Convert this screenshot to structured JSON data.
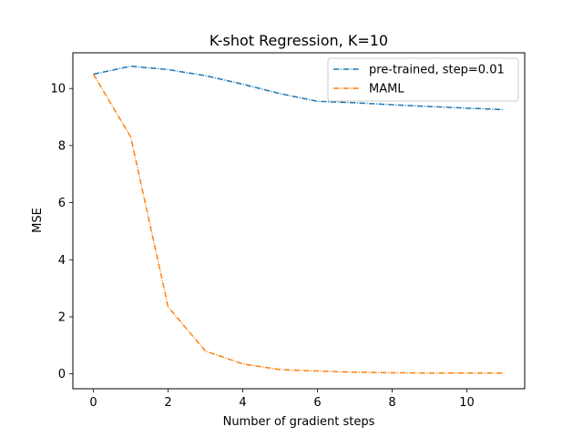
{
  "chart_data": {
    "type": "line",
    "title": "K-shot Regression, K=10",
    "xlabel": "Number of gradient steps",
    "ylabel": "MSE",
    "xlim": [
      -0.55,
      11.55
    ],
    "ylim": [
      -0.52,
      11.25
    ],
    "xticks": [
      0,
      2,
      4,
      6,
      8,
      10
    ],
    "yticks": [
      0,
      2,
      4,
      6,
      8,
      10
    ],
    "x": [
      0,
      1,
      2,
      3,
      4,
      5,
      6,
      7,
      8,
      9,
      10,
      11
    ],
    "series": [
      {
        "name": "pre-trained, step=0.01",
        "color": "#1f77b4",
        "line_style": "dash-dot",
        "values": [
          10.5,
          10.78,
          10.66,
          10.45,
          10.15,
          9.82,
          9.55,
          9.5,
          9.43,
          9.37,
          9.31,
          9.26
        ]
      },
      {
        "name": "MAML",
        "color": "#ff7f0e",
        "line_style": "dash-dot",
        "values": [
          10.5,
          8.3,
          2.35,
          0.8,
          0.35,
          0.15,
          0.1,
          0.06,
          0.04,
          0.03,
          0.03,
          0.03
        ]
      }
    ],
    "grid": false,
    "legend_position": "top-right"
  }
}
